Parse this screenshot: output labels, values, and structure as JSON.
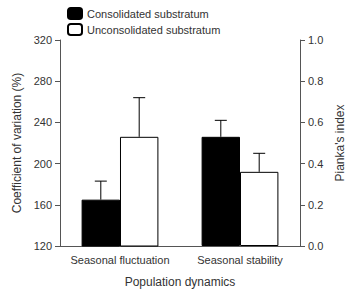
{
  "chart_data": {
    "type": "bar",
    "categories": [
      "Seasonal fluctuation",
      "Seasonal stability"
    ],
    "x_label": "Population dynamics",
    "y_label": "Coefficient of variation (%)",
    "y2_label": "Pianka's index",
    "ylim": [
      120,
      320
    ],
    "yticks": [
      120,
      160,
      200,
      240,
      280,
      320
    ],
    "y2lim": [
      0,
      1
    ],
    "y2ticks": [
      {
        "value": 0,
        "label": "0.0"
      },
      0.2,
      0.4,
      0.6,
      0.8,
      {
        "value": 1,
        "label": "1.0"
      }
    ],
    "grid": false,
    "legend": "upper left",
    "series": [
      {
        "name": "Consolidated substratum",
        "color": "#000000",
        "values": [
          165,
          null
        ],
        "errors": [
          18,
          null
        ]
      },
      {
        "name": "Unconsolidated substratum",
        "color": "#ffffff",
        "values": [
          226,
          null
        ],
        "errors": [
          38,
          null
        ]
      },
      {
        "name": "Consolidated substratum",
        "color": "#000000",
        "values": [
          null,
          0.53
        ],
        "errors": [
          null,
          0.08
        ],
        "axis": "y2"
      },
      {
        "name": "Unconsolidated substratum",
        "color": "#ffffff",
        "values": [
          null,
          0.36
        ],
        "errors": [
          null,
          0.09
        ],
        "axis": "y2"
      }
    ]
  }
}
